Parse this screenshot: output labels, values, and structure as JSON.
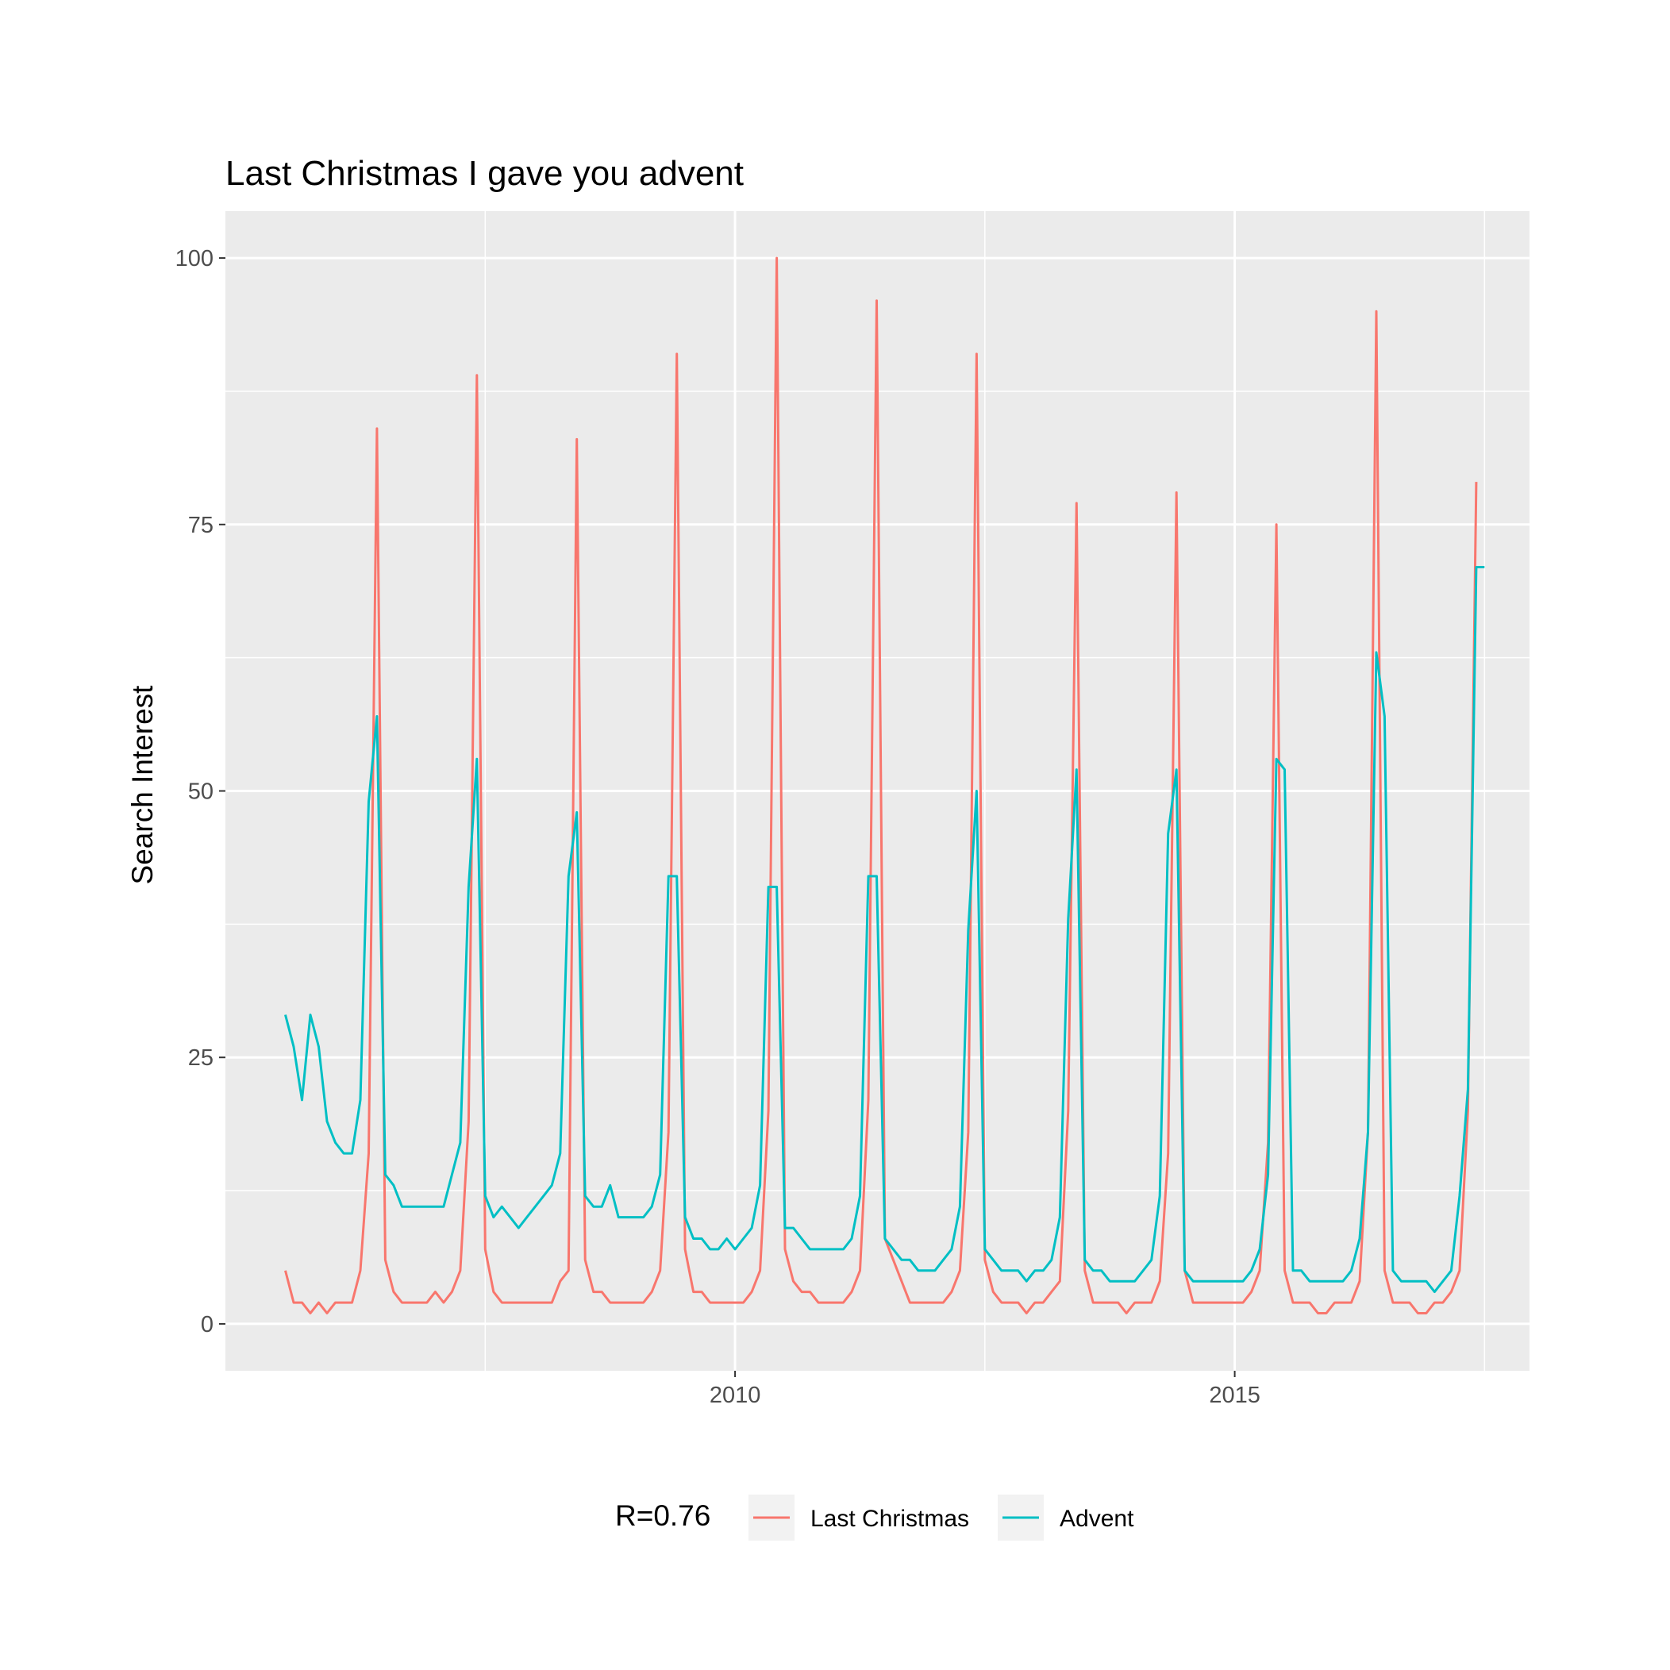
{
  "chart_data": {
    "type": "line",
    "title": "Last Christmas I gave you advent",
    "xlabel": "",
    "ylabel": "Search Interest",
    "xlim": [
      2004.9,
      2017.95
    ],
    "ylim": [
      -4.4,
      104.4
    ],
    "x_ticks": [
      2010,
      2015
    ],
    "y_ticks": [
      0,
      25,
      50,
      75,
      100
    ],
    "x_minor_ticks": [
      2007.5,
      2012.5,
      2017.5
    ],
    "y_minor_ticks": [
      12.5,
      37.5,
      62.5,
      87.5
    ],
    "grid": true,
    "legend": {
      "title": "R=0.76",
      "position": "bottom"
    },
    "x_start": 2005.5,
    "x_step": 0.08333333,
    "series": [
      {
        "name": "Last Christmas",
        "color": "#F8766D",
        "values": [
          5,
          2,
          2,
          1,
          2,
          1,
          2,
          2,
          2,
          5,
          16,
          84,
          6,
          3,
          2,
          2,
          2,
          2,
          3,
          2,
          3,
          5,
          19,
          89,
          7,
          3,
          2,
          2,
          2,
          2,
          2,
          2,
          2,
          4,
          5,
          83,
          6,
          3,
          3,
          2,
          2,
          2,
          2,
          2,
          3,
          5,
          18,
          91,
          7,
          3,
          3,
          2,
          2,
          2,
          2,
          2,
          3,
          5,
          20,
          100,
          7,
          4,
          3,
          3,
          2,
          2,
          2,
          2,
          3,
          5,
          21,
          96,
          8,
          6,
          4,
          2,
          2,
          2,
          2,
          2,
          3,
          5,
          18,
          91,
          6,
          3,
          2,
          2,
          2,
          1,
          2,
          2,
          3,
          4,
          20,
          77,
          5,
          2,
          2,
          2,
          2,
          1,
          2,
          2,
          2,
          4,
          16,
          78,
          5,
          2,
          2,
          2,
          2,
          2,
          2,
          2,
          3,
          5,
          17,
          75,
          5,
          2,
          2,
          2,
          1,
          1,
          2,
          2,
          2,
          4,
          18,
          95,
          5,
          2,
          2,
          2,
          1,
          1,
          2,
          2,
          3,
          5,
          20,
          79
        ]
      },
      {
        "name": "Advent",
        "color": "#00BFC4",
        "values": [
          29,
          26,
          21,
          29,
          26,
          19,
          17,
          16,
          16,
          21,
          49,
          57,
          14,
          13,
          11,
          11,
          11,
          11,
          11,
          11,
          14,
          17,
          41,
          53,
          12,
          10,
          11,
          10,
          9,
          10,
          11,
          12,
          13,
          16,
          42,
          48,
          12,
          11,
          11,
          13,
          10,
          10,
          10,
          10,
          11,
          14,
          42,
          42,
          10,
          8,
          8,
          7,
          7,
          8,
          7,
          8,
          9,
          13,
          41,
          41,
          9,
          9,
          8,
          7,
          7,
          7,
          7,
          7,
          8,
          12,
          42,
          42,
          8,
          7,
          6,
          6,
          5,
          5,
          5,
          6,
          7,
          11,
          37,
          50,
          7,
          6,
          5,
          5,
          5,
          4,
          5,
          5,
          6,
          10,
          38,
          52,
          6,
          5,
          5,
          4,
          4,
          4,
          4,
          5,
          6,
          12,
          46,
          52,
          5,
          4,
          4,
          4,
          4,
          4,
          4,
          4,
          5,
          7,
          14,
          53,
          52,
          5,
          5,
          4,
          4,
          4,
          4,
          4,
          5,
          8,
          18,
          63,
          57,
          5,
          4,
          4,
          4,
          4,
          3,
          4,
          5,
          12,
          22,
          71,
          71
        ]
      }
    ]
  }
}
